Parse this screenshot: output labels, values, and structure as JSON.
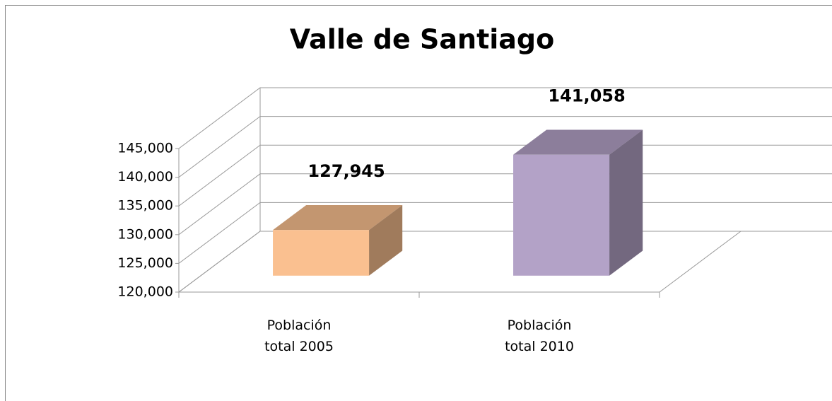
{
  "chart_data": {
    "type": "bar3d",
    "title": "Valle de Santiago",
    "categories": [
      "Población total 2005",
      "Población total 2010"
    ],
    "values": [
      127945,
      141058
    ],
    "value_labels": [
      "127,945",
      "141,058"
    ],
    "colors": [
      "#fac090",
      "#b3a2c7"
    ],
    "ylim": [
      120000,
      145000
    ],
    "yticks": [
      {
        "value": 120000,
        "label": "120,000"
      },
      {
        "value": 125000,
        "label": "125,000"
      },
      {
        "value": 130000,
        "label": "130,000"
      },
      {
        "value": 135000,
        "label": "135,000"
      },
      {
        "value": 140000,
        "label": "140,000"
      },
      {
        "value": 145000,
        "label": "145,000"
      }
    ],
    "grid": true
  }
}
